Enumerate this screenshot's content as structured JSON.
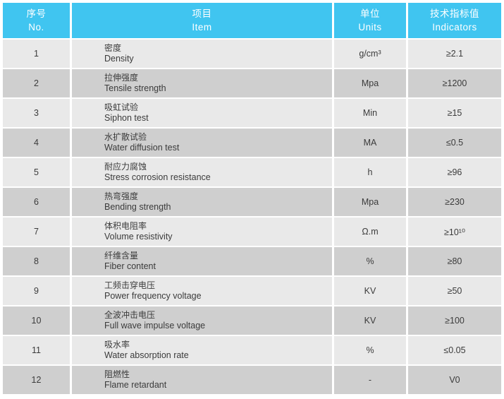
{
  "colors": {
    "header_bg": "#40C5F0",
    "row_light": "#E9E9E9",
    "row_dark": "#CFCFCF",
    "header_text": "#FFFFFF",
    "body_text": "#3B3B3B"
  },
  "header": {
    "no_cn": "序号",
    "no_en": "No.",
    "item_cn": "项目",
    "item_en": "Item",
    "unit_cn": "单位",
    "unit_en": "Units",
    "indicator_cn": "技术指标值",
    "indicator_en": "Indicators"
  },
  "rows": [
    {
      "no": "1",
      "item_cn": "密度",
      "item_en": "Density",
      "unit": "g/cm³",
      "value": "≥2.1"
    },
    {
      "no": "2",
      "item_cn": "拉伸强度",
      "item_en": "Tensile strength",
      "unit": "Mpa",
      "value": "≥1200"
    },
    {
      "no": "3",
      "item_cn": "吸虹试验",
      "item_en": "Siphon test",
      "unit": "Min",
      "value": "≥15"
    },
    {
      "no": "4",
      "item_cn": "水扩散试验",
      "item_en": "Water diffusion test",
      "unit": "MA",
      "value": "≤0.5"
    },
    {
      "no": "5",
      "item_cn": "耐应力腐蚀",
      "item_en": "Stress corrosion resistance",
      "unit": "h",
      "value": "≥96"
    },
    {
      "no": "6",
      "item_cn": "热弯强度",
      "item_en": "Bending strength",
      "unit": "Mpa",
      "value": "≥230"
    },
    {
      "no": "7",
      "item_cn": "体积电阻率",
      "item_en": "Volume resistivity",
      "unit": "Ω.m",
      "value": "≥10¹⁰"
    },
    {
      "no": "8",
      "item_cn": "纤维含量",
      "item_en": "Fiber content",
      "unit": "%",
      "value": "≥80"
    },
    {
      "no": "9",
      "item_cn": "工频击穿电压",
      "item_en": "Power frequency voltage",
      "unit": "KV",
      "value": "≥50"
    },
    {
      "no": "10",
      "item_cn": "全波冲击电压",
      "item_en": "Full wave impulse voltage",
      "unit": "KV",
      "value": "≥100"
    },
    {
      "no": "11",
      "item_cn": "吸水率",
      "item_en": "Water absorption rate",
      "unit": "%",
      "value": "≤0.05"
    },
    {
      "no": "12",
      "item_cn": "阻燃性",
      "item_en": "Flame retardant",
      "unit": "-",
      "value": "V0"
    }
  ]
}
